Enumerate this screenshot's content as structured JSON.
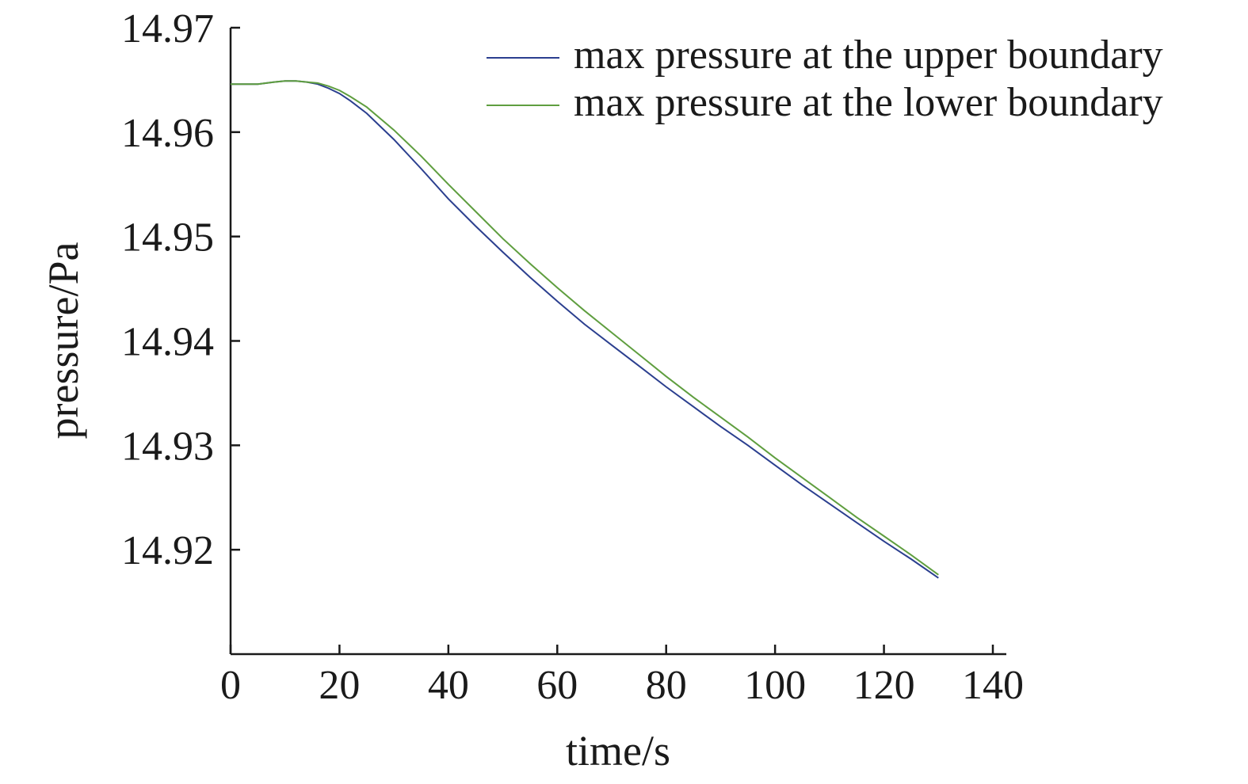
{
  "chart_data": {
    "type": "line",
    "title": "",
    "xlabel": "time/s",
    "ylabel": "pressure/Pa",
    "xlim": [
      0,
      140
    ],
    "ylim": [
      14.91,
      14.97
    ],
    "xticks": [
      0,
      20,
      40,
      60,
      80,
      100,
      120,
      140
    ],
    "xtick_labels": [
      "0",
      "20",
      "40",
      "60",
      "80",
      "100",
      "120",
      "140"
    ],
    "yticks": [
      14.92,
      14.93,
      14.94,
      14.95,
      14.96,
      14.97
    ],
    "ytick_labels": [
      "14.92",
      "14.93",
      "14.94",
      "14.95",
      "14.96",
      "14.97"
    ],
    "grid": false,
    "legend_position": "top-right",
    "series": [
      {
        "name": "max pressure at the upper boundary",
        "color": "#2b3f8f",
        "x": [
          0,
          5,
          8,
          10,
          12,
          14,
          16,
          18,
          20,
          22,
          25,
          30,
          35,
          40,
          45,
          50,
          55,
          60,
          65,
          70,
          75,
          80,
          85,
          90,
          95,
          100,
          105,
          110,
          115,
          120,
          125,
          130
        ],
        "y": [
          14.9646,
          14.9646,
          14.9648,
          14.9649,
          14.9649,
          14.9648,
          14.9646,
          14.9642,
          14.9637,
          14.963,
          14.9618,
          14.9593,
          14.9565,
          14.9536,
          14.951,
          14.9485,
          14.9461,
          14.9438,
          14.9416,
          14.9396,
          14.9376,
          14.9356,
          14.9337,
          14.9318,
          14.93,
          14.9281,
          14.9262,
          14.9244,
          14.9226,
          14.9208,
          14.9191,
          14.9173
        ]
      },
      {
        "name": "max pressure at the lower boundary",
        "color": "#5f9e3f",
        "x": [
          0,
          5,
          8,
          10,
          12,
          14,
          16,
          18,
          20,
          22,
          25,
          30,
          35,
          40,
          45,
          50,
          55,
          60,
          65,
          70,
          75,
          80,
          85,
          90,
          95,
          100,
          105,
          110,
          115,
          120,
          125,
          130
        ],
        "y": [
          14.9646,
          14.9646,
          14.9648,
          14.9649,
          14.9649,
          14.9648,
          14.9647,
          14.9644,
          14.964,
          14.9634,
          14.9624,
          14.9602,
          14.9577,
          14.955,
          14.9524,
          14.9498,
          14.9474,
          14.9451,
          14.9429,
          14.9408,
          14.9387,
          14.9366,
          14.9346,
          14.9327,
          14.9308,
          14.9288,
          14.9269,
          14.925,
          14.9231,
          14.9213,
          14.9195,
          14.9176
        ]
      }
    ]
  }
}
